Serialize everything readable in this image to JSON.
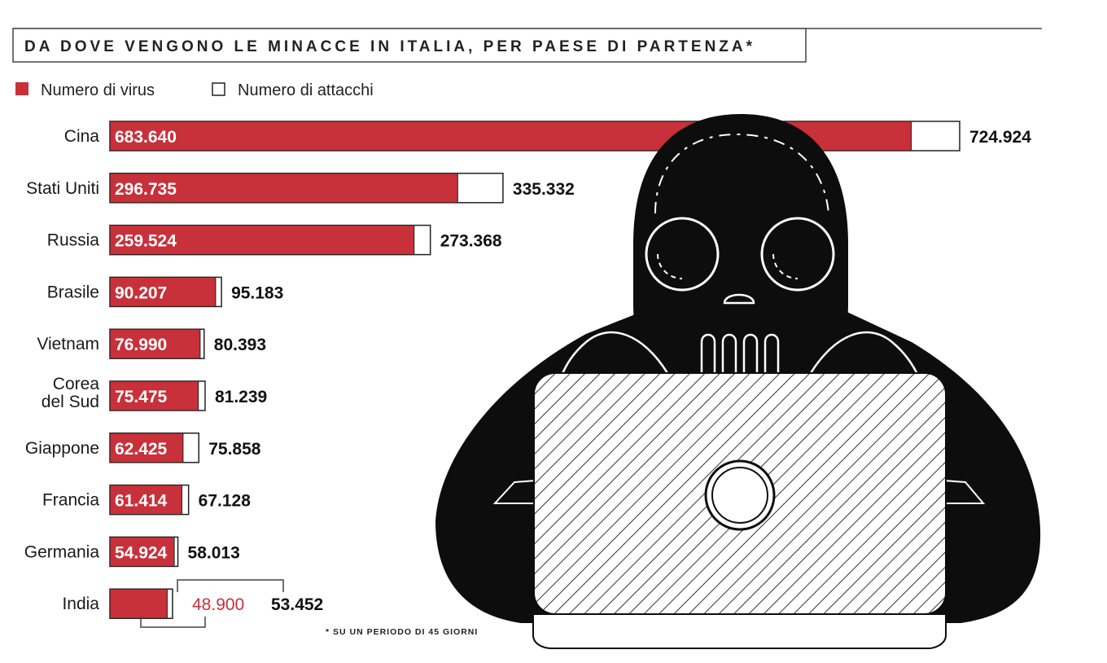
{
  "colors": {
    "virus": "#c8303a",
    "attacks": "#ffffff",
    "outline": "#222222",
    "illustration": "#0d0d0d"
  },
  "icons": [
    "hacker-skull-illustration",
    "laptop-icon"
  ],
  "chart_data": {
    "type": "bar",
    "orientation": "horizontal",
    "title": "DA DOVE VENGONO LE MINACCE IN ITALIA, PER PAESE DI PARTENZA*",
    "note": "* SU UN PERIODO DI 45 GIORNI",
    "legend": {
      "position": "top-left"
    },
    "categories": [
      "Cina",
      "Stati Uniti",
      "Russia",
      "Brasile",
      "Vietnam",
      "Corea del Sud",
      "Giappone",
      "Francia",
      "Germania",
      "India"
    ],
    "category_lines": [
      [
        "Cina"
      ],
      [
        "Stati Uniti"
      ],
      [
        "Russia"
      ],
      [
        "Brasile"
      ],
      [
        "Vietnam"
      ],
      [
        "Corea",
        "del Sud"
      ],
      [
        "Giappone"
      ],
      [
        "Francia"
      ],
      [
        "Germania"
      ],
      [
        "India"
      ]
    ],
    "series": [
      {
        "name": "Numero di virus",
        "values": [
          683640,
          296735,
          259524,
          90207,
          76990,
          75475,
          62425,
          61414,
          54924,
          48900
        ],
        "labels": [
          "683.640",
          "296.735",
          "259.524",
          "90.207",
          "76.990",
          "75.475",
          "62.425",
          "61.414",
          "54.924",
          "48.900"
        ]
      },
      {
        "name": "Numero di attacchi",
        "values": [
          724924,
          335332,
          273368,
          95183,
          80393,
          81239,
          75858,
          67128,
          58013,
          53452
        ],
        "labels": [
          "724.924",
          "335.332",
          "273.368",
          "95.183",
          "80.393",
          "81.239",
          "75.858",
          "67.128",
          "58.013",
          "53.452"
        ]
      }
    ],
    "xlim": [
      0,
      724924
    ],
    "grid": false
  }
}
